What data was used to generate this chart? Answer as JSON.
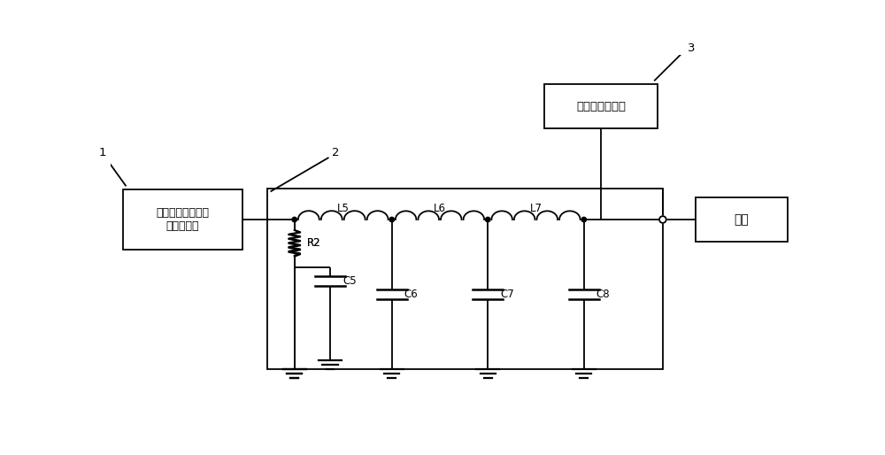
{
  "background_color": "#ffffff",
  "line_color": "#000000",
  "label1": "第一级串联型有源\n电力滤波器",
  "label2_box": "干式铁芯电抗器",
  "label3_box": "负载",
  "ref1": "1",
  "ref2": "2",
  "ref3": "3",
  "comp_L5": "L5",
  "comp_L6": "L6",
  "comp_L7": "L7",
  "comp_R2": "R2",
  "comp_C5": "C5",
  "comp_C6": "C6",
  "comp_C7": "C7",
  "comp_C8": "C8",
  "figw": 10.0,
  "figh": 5.14,
  "dpi": 100
}
